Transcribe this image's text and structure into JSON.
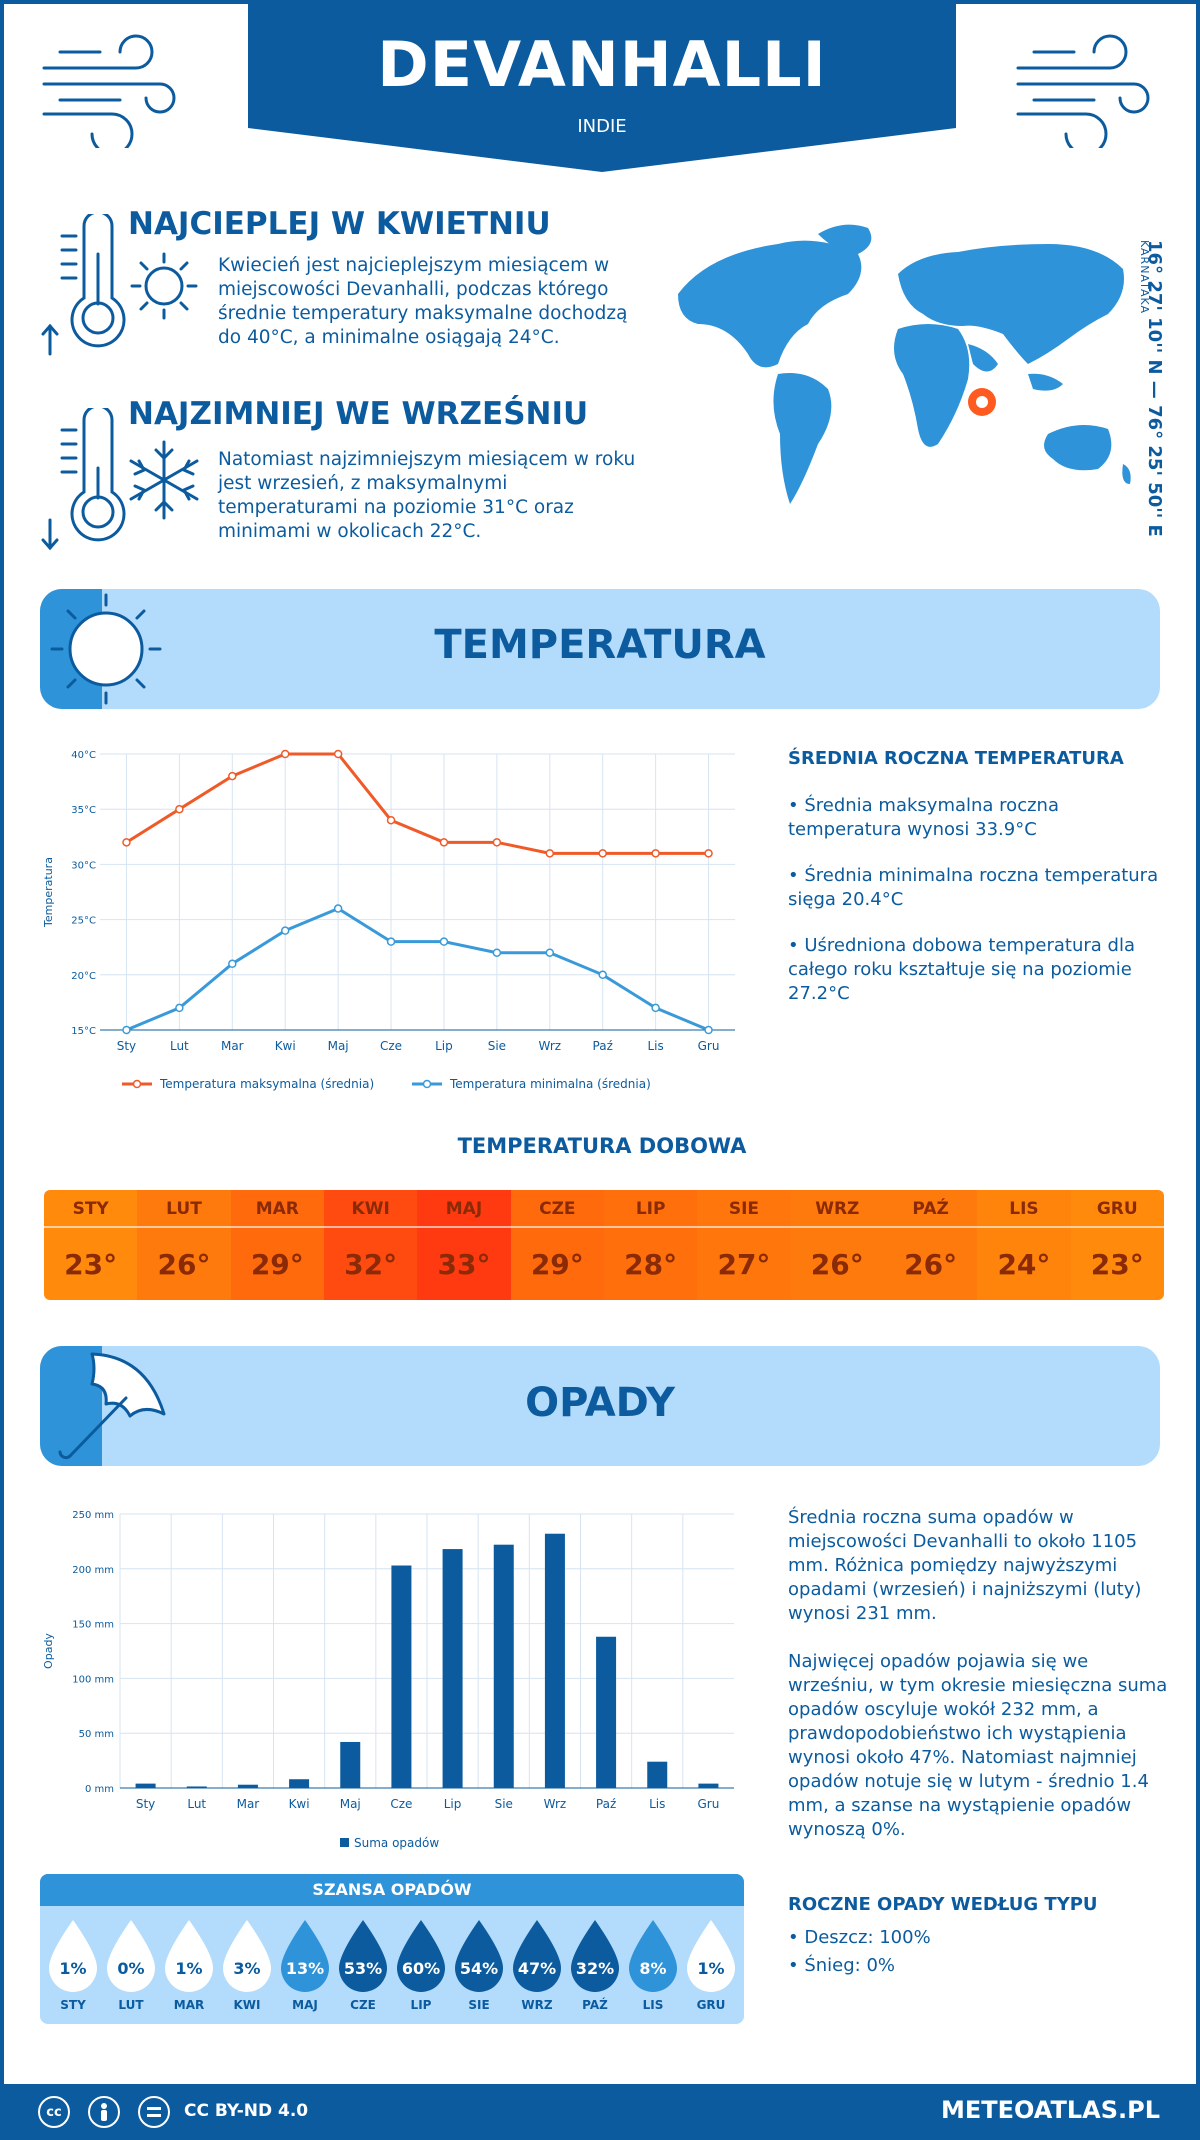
{
  "header": {
    "city": "DEVANHALLI",
    "country": "INDIE"
  },
  "hottest": {
    "title": "NAJCIEPLEJ W KWIETNIU",
    "text": "Kwiecień jest najcieplejszym miesiącem w miejscowości Devanhalli, podczas którego średnie temperatury maksymalne dochodzą do 40°C, a minimalne osiągają 24°C."
  },
  "coldest": {
    "title": "NAJZIMNIEJ WE WRZEŚNIU",
    "text": "Natomiast najzimniejszym miesiącem w roku jest wrzesień, z maksymalnymi temperaturami na poziomie 31°C oraz minimami w okolicach 22°C."
  },
  "location": {
    "coordinates": "16° 27' 10'' N — 76° 25' 50'' E",
    "region": "KARNATAKA"
  },
  "temperature_section": {
    "title": "TEMPERATURA",
    "side_title": "ŚREDNIA ROCZNA TEMPERATURA",
    "side_items": [
      "• Średnia maksymalna roczna temperatura wynosi 33.9°C",
      "• Średnia minimalna roczna temperatura sięga 20.4°C",
      "• Uśredniona dobowa temperatura dla całego roku kształtuje się na poziomie 27.2°C"
    ]
  },
  "daily": {
    "title": "TEMPERATURA DOBOWA",
    "months": [
      "STY",
      "LUT",
      "MAR",
      "KWI",
      "MAJ",
      "CZE",
      "LIP",
      "SIE",
      "WRZ",
      "PAŹ",
      "LIS",
      "GRU"
    ],
    "values": [
      "23°",
      "26°",
      "29°",
      "32°",
      "33°",
      "29°",
      "28°",
      "27°",
      "26°",
      "26°",
      "24°",
      "23°"
    ],
    "colors": [
      "#ff8a0c",
      "#ff7a0c",
      "#ff6a0c",
      "#ff4a10",
      "#ff3a10",
      "#ff6a0c",
      "#ff700c",
      "#ff760c",
      "#ff7a0c",
      "#ff7a0c",
      "#ff840c",
      "#ff8a0c"
    ]
  },
  "precip_section": {
    "title": "OPADY",
    "paragraph1": "Średnia roczna suma opadów w miejscowości Devanhalli to około 1105 mm. Różnica pomiędzy najwyższymi opadami (wrzesień) i najniższymi (luty) wynosi 231 mm.",
    "paragraph2": "Najwięcej opadów pojawia się we wrześniu, w tym okresie miesięczna suma opadów oscyluje wokół 232 mm, a prawdopodobieństwo ich wystąpienia wynosi około 47%. Natomiast najmniej opadów notuje się w lutym - średnio 1.4 mm, a szanse na wystąpienie opadów wynoszą 0%.",
    "type_title": "ROCZNE OPADY WEDŁUG TYPU",
    "types": [
      "• Deszcz: 100%",
      "• Śnieg: 0%"
    ]
  },
  "chance": {
    "title": "SZANSA OPADÓW",
    "months": [
      "STY",
      "LUT",
      "MAR",
      "KWI",
      "MAJ",
      "CZE",
      "LIP",
      "SIE",
      "WRZ",
      "PAŹ",
      "LIS",
      "GRU"
    ],
    "values": [
      "1%",
      "0%",
      "1%",
      "3%",
      "13%",
      "53%",
      "60%",
      "54%",
      "47%",
      "32%",
      "8%",
      "1%"
    ],
    "colors": [
      "#ffffff",
      "#ffffff",
      "#ffffff",
      "#ffffff",
      "#2e93d8",
      "#0b5b9e",
      "#0b5b9e",
      "#0b5b9e",
      "#0b5b9e",
      "#0b5b9e",
      "#2e93d8",
      "#ffffff"
    ]
  },
  "footer": {
    "license": "CC BY-ND 4.0",
    "brand": "METEOATLAS.PL"
  },
  "chart_data": [
    {
      "type": "line",
      "categories": [
        "Sty",
        "Lut",
        "Mar",
        "Kwi",
        "Maj",
        "Cze",
        "Lip",
        "Sie",
        "Wrz",
        "Paź",
        "Lis",
        "Gru"
      ],
      "series": [
        {
          "name": "Temperatura maksymalna (średnia)",
          "color": "#f05a28",
          "values": [
            32,
            35,
            38,
            40,
            40,
            34,
            32,
            32,
            31,
            31,
            31,
            31
          ]
        },
        {
          "name": "Temperatura minimalna (średnia)",
          "color": "#3a9ad9",
          "values": [
            15,
            17,
            21,
            24,
            26,
            23,
            23,
            22,
            22,
            20,
            17,
            15
          ]
        }
      ],
      "ylabel": "Temperatura",
      "yticks": [
        "15°C",
        "20°C",
        "25°C",
        "30°C",
        "35°C",
        "40°C"
      ],
      "ylim": [
        15,
        40
      ],
      "grid": true,
      "legend": "bottom"
    },
    {
      "type": "bar",
      "categories": [
        "Sty",
        "Lut",
        "Mar",
        "Kwi",
        "Maj",
        "Cze",
        "Lip",
        "Sie",
        "Wrz",
        "Paź",
        "Lis",
        "Gru"
      ],
      "series": [
        {
          "name": "Suma opadów",
          "color": "#0b5b9e",
          "values": [
            4,
            1.4,
            3,
            8,
            42,
            203,
            218,
            222,
            232,
            138,
            24,
            4
          ]
        }
      ],
      "ylabel": "Opady",
      "yticks": [
        "0 mm",
        "50 mm",
        "100 mm",
        "150 mm",
        "200 mm",
        "250 mm"
      ],
      "ylim": [
        0,
        250
      ],
      "grid": true,
      "legend": "bottom"
    }
  ]
}
